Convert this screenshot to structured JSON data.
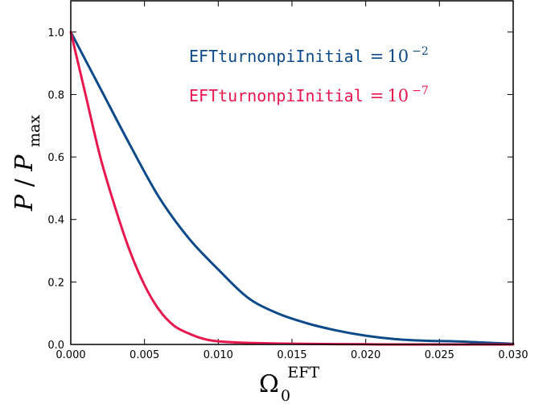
{
  "chart_data": {
    "type": "line",
    "xlabel": {
      "base": "Ω",
      "sub": "0",
      "sup": "EFT"
    },
    "ylabel": {
      "p": "P",
      "slash": "/",
      "pmax": "P",
      "sub": "max"
    },
    "xlim": [
      0.0,
      0.03
    ],
    "ylim": [
      0.0,
      1.1
    ],
    "x_ticks": [
      "0.000",
      "0.005",
      "0.010",
      "0.015",
      "0.020",
      "0.025",
      "0.030"
    ],
    "y_ticks": [
      "0.0",
      "0.2",
      "0.4",
      "0.6",
      "0.8",
      "1.0"
    ],
    "grid": false,
    "legend_position": "top-right",
    "series": [
      {
        "name": "EFTturnonpiInitial",
        "value_base": "10",
        "value_exp": "−2",
        "color": "#0d4a8a",
        "x": [
          0.0,
          0.002,
          0.004,
          0.006,
          0.008,
          0.01,
          0.012,
          0.014,
          0.016,
          0.018,
          0.02,
          0.022,
          0.024,
          0.026,
          0.028,
          0.03
        ],
        "y": [
          1.0,
          0.82,
          0.64,
          0.47,
          0.34,
          0.24,
          0.15,
          0.1,
          0.068,
          0.045,
          0.028,
          0.017,
          0.012,
          0.01,
          0.006,
          0.002
        ]
      },
      {
        "name": "EFTturnonpiInitial",
        "value_base": "10",
        "value_exp": "−7",
        "color": "#e8174e",
        "x": [
          0.0,
          0.001,
          0.002,
          0.003,
          0.004,
          0.005,
          0.006,
          0.007,
          0.008,
          0.009,
          0.01,
          0.012,
          0.014,
          0.016,
          0.018,
          0.02,
          0.022,
          0.03
        ],
        "y": [
          1.0,
          0.8,
          0.6,
          0.44,
          0.3,
          0.19,
          0.11,
          0.06,
          0.035,
          0.018,
          0.01,
          0.005,
          0.003,
          0.002,
          0.001,
          0.0005,
          0.0,
          0.0
        ]
      }
    ]
  }
}
